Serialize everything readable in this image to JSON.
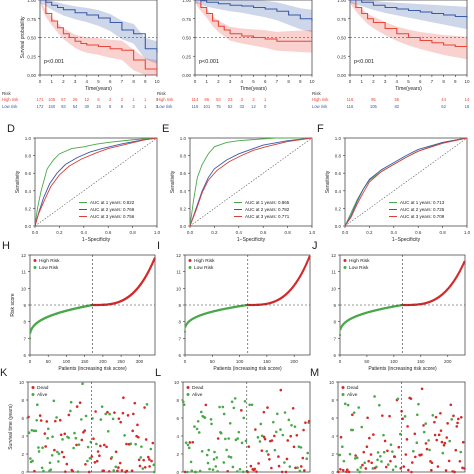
{
  "chart_data": [
    {
      "id": "A",
      "type": "line",
      "panel_label": "",
      "title": "",
      "xlabel": "Time(years)",
      "ylabel": "Survival probability",
      "xlim": [
        0,
        10
      ],
      "ylim": [
        0,
        1
      ],
      "x_ticks": [
        "0",
        "1",
        "2",
        "3",
        "4",
        "5",
        "6",
        "7",
        "8",
        "9",
        "10"
      ],
      "y_ticks": [
        "0.00",
        "0.25",
        "0.50",
        "0.75",
        "1.00"
      ],
      "pvalue": "p<0.001",
      "series": [
        {
          "name": "High risk",
          "color": "#e8473a",
          "x": [
            0,
            0.5,
            1,
            1.5,
            2,
            2.5,
            3,
            3.5,
            4,
            5,
            6,
            7,
            8,
            9,
            10
          ],
          "y": [
            1.0,
            0.82,
            0.72,
            0.63,
            0.55,
            0.5,
            0.45,
            0.42,
            0.4,
            0.38,
            0.35,
            0.33,
            0.2,
            0.08,
            0.05
          ]
        },
        {
          "name": "Low risk",
          "color": "#3a5ba8",
          "x": [
            0,
            0.5,
            1,
            1.5,
            2,
            3,
            4,
            5,
            6,
            7,
            8,
            9,
            10
          ],
          "y": [
            1.0,
            0.97,
            0.93,
            0.9,
            0.87,
            0.83,
            0.8,
            0.76,
            0.7,
            0.6,
            0.55,
            0.35,
            0.3
          ]
        }
      ],
      "risk_table": {
        "label": "Risk",
        "rows": [
          {
            "name": "High risk",
            "color": "#e8473a",
            "values": [
              "171",
              "105",
              "57",
              "26",
              "12",
              "6",
              "2",
              "2",
              "1",
              "1",
              "0"
            ]
          },
          {
            "name": "Low risk",
            "color": "#3a5ba8",
            "values": [
              "172",
              "150",
              "93",
              "54",
              "30",
              "15",
              "8",
              "6",
              "3",
              "1",
              "0"
            ]
          }
        ]
      }
    },
    {
      "id": "B",
      "type": "line",
      "panel_label": "",
      "title": "",
      "xlabel": "Time(years)",
      "ylabel": "",
      "xlim": [
        0,
        10
      ],
      "ylim": [
        0,
        1
      ],
      "x_ticks": [
        "0",
        "1",
        "2",
        "3",
        "4",
        "5",
        "6",
        "7",
        "8",
        "9",
        "10"
      ],
      "y_ticks": [
        "0.00",
        "0.25",
        "0.50",
        "0.75",
        "1.00"
      ],
      "pvalue": "p<0.001",
      "series": [
        {
          "name": "High risk",
          "color": "#e8473a",
          "x": [
            0,
            0.5,
            1,
            1.5,
            2,
            2.5,
            3,
            4,
            5,
            6,
            7,
            8,
            9,
            10
          ],
          "y": [
            1.0,
            0.9,
            0.82,
            0.72,
            0.65,
            0.6,
            0.55,
            0.52,
            0.5,
            0.48,
            0.45,
            0.45,
            0.45,
            0.45
          ]
        },
        {
          "name": "Low risk",
          "color": "#3a5ba8",
          "x": [
            0,
            0.5,
            1,
            2,
            3,
            4,
            5,
            6,
            7,
            8,
            9,
            10
          ],
          "y": [
            1.0,
            0.99,
            0.97,
            0.95,
            0.93,
            0.92,
            0.9,
            0.88,
            0.85,
            0.8,
            0.75,
            0.72
          ]
        }
      ],
      "risk_table": {
        "label": "Risk",
        "rows": [
          {
            "name": "High risk",
            "color": "#e8473a",
            "values": [
              "114",
              "86",
              "53",
              "23",
              "3",
              "2",
              "1",
              "",
              "",
              "",
              ""
            ]
          },
          {
            "name": "Low risk",
            "color": "#3a5ba8",
            "values": [
              "115",
              "101",
              "75",
              "52",
              "33",
              "12",
              "0",
              "",
              "",
              "",
              ""
            ]
          }
        ]
      }
    },
    {
      "id": "C",
      "type": "line",
      "panel_label": "",
      "title": "",
      "xlabel": "Time(years)",
      "ylabel": "",
      "xlim": [
        0,
        10
      ],
      "ylim": [
        0,
        1
      ],
      "x_ticks": [
        "0",
        "1",
        "2",
        "3",
        "4",
        "5",
        "6",
        "7",
        "8",
        "9",
        "10"
      ],
      "y_ticks": [
        "0.00",
        "0.25",
        "0.50",
        "0.75",
        "1.00"
      ],
      "pvalue": "p<0.001",
      "series": [
        {
          "name": "High risk",
          "color": "#e8473a",
          "x": [
            0,
            0.5,
            1,
            1.5,
            2,
            3,
            4,
            5,
            6,
            7,
            8,
            9,
            10
          ],
          "y": [
            1.0,
            0.9,
            0.82,
            0.75,
            0.7,
            0.62,
            0.55,
            0.5,
            0.46,
            0.43,
            0.4,
            0.38,
            0.36
          ]
        },
        {
          "name": "Low risk",
          "color": "#3a5ba8",
          "x": [
            0,
            1,
            2,
            3,
            4,
            5,
            6,
            7,
            8,
            9,
            10
          ],
          "y": [
            1.0,
            0.97,
            0.93,
            0.9,
            0.88,
            0.86,
            0.84,
            0.82,
            0.8,
            0.78,
            0.76
          ]
        }
      ],
      "risk_table": {
        "label": "Risk",
        "rows": [
          {
            "name": "High risk",
            "color": "#e8473a",
            "values": [
              "116",
              "",
              "95",
              "",
              "55",
              "",
              "",
              "",
              "44",
              "",
              "14"
            ]
          },
          {
            "name": "Low risk",
            "color": "#3a5ba8",
            "values": [
              "116",
              "",
              "105",
              "",
              "82",
              "",
              "",
              "",
              "62",
              "",
              "18"
            ]
          }
        ]
      }
    },
    {
      "id": "D",
      "type": "line",
      "panel_label": "D",
      "title": "",
      "xlabel": "1−Specificity",
      "ylabel": "Sensitivity",
      "xlim": [
        0,
        1
      ],
      "ylim": [
        0,
        1
      ],
      "x_ticks": [
        "0.0",
        "0.2",
        "0.4",
        "0.6",
        "0.8",
        "1.0"
      ],
      "y_ticks": [
        "0.0",
        "0.2",
        "0.4",
        "0.6",
        "0.8",
        "1.0"
      ],
      "legend": [
        "AUC at 1 years: 0.822",
        "AUC at 2 years: 0.769",
        "AUC at 3 years: 0.756"
      ],
      "series": [
        {
          "name": "AUC at 1 years: 0.822",
          "color": "#4aa84a",
          "x": [
            0,
            0.02,
            0.05,
            0.08,
            0.1,
            0.15,
            0.2,
            0.3,
            0.4,
            0.5,
            0.6,
            0.8,
            1
          ],
          "y": [
            0,
            0.2,
            0.4,
            0.55,
            0.65,
            0.75,
            0.82,
            0.88,
            0.9,
            0.93,
            0.95,
            0.98,
            1
          ]
        },
        {
          "name": "AUC at 2 years: 0.769",
          "color": "#3a5ba8",
          "x": [
            0,
            0.03,
            0.07,
            0.12,
            0.18,
            0.25,
            0.35,
            0.45,
            0.55,
            0.7,
            0.85,
            1
          ],
          "y": [
            0,
            0.15,
            0.32,
            0.48,
            0.6,
            0.7,
            0.78,
            0.84,
            0.88,
            0.93,
            0.97,
            1
          ]
        },
        {
          "name": "AUC at 3 years: 0.756",
          "color": "#d9403a",
          "x": [
            0,
            0.03,
            0.08,
            0.13,
            0.2,
            0.28,
            0.38,
            0.5,
            0.6,
            0.75,
            0.9,
            1
          ],
          "y": [
            0,
            0.14,
            0.3,
            0.45,
            0.58,
            0.68,
            0.76,
            0.83,
            0.88,
            0.93,
            0.98,
            1
          ]
        }
      ]
    },
    {
      "id": "E",
      "type": "line",
      "panel_label": "E",
      "title": "",
      "xlabel": "1−Specificity",
      "ylabel": "Sensitivity",
      "xlim": [
        0,
        1
      ],
      "ylim": [
        0,
        1
      ],
      "x_ticks": [
        "0.0",
        "0.2",
        "0.4",
        "0.6",
        "0.8",
        "1.0"
      ],
      "y_ticks": [
        "0.0",
        "0.2",
        "0.4",
        "0.6",
        "0.8",
        "1.0"
      ],
      "legend": [
        "AUC at 1 years: 0.865",
        "AUC at 2 years: 0.782",
        "AUC at 3 years: 0.771"
      ],
      "series": [
        {
          "name": "AUC at 1 years: 0.865",
          "color": "#4aa84a",
          "x": [
            0,
            0.03,
            0.06,
            0.1,
            0.15,
            0.2,
            0.3,
            0.4,
            0.5,
            0.7,
            1
          ],
          "y": [
            0,
            0.3,
            0.55,
            0.7,
            0.82,
            0.9,
            0.95,
            0.97,
            0.98,
            1,
            1
          ]
        },
        {
          "name": "AUC at 2 years: 0.782",
          "color": "#3a5ba8",
          "x": [
            0,
            0.05,
            0.1,
            0.15,
            0.2,
            0.3,
            0.4,
            0.5,
            0.6,
            0.8,
            1
          ],
          "y": [
            0,
            0.2,
            0.4,
            0.55,
            0.65,
            0.75,
            0.82,
            0.87,
            0.92,
            0.97,
            1
          ]
        },
        {
          "name": "AUC at 3 years: 0.771",
          "color": "#d9403a",
          "x": [
            0,
            0.05,
            0.1,
            0.15,
            0.22,
            0.32,
            0.42,
            0.52,
            0.62,
            0.8,
            1
          ],
          "y": [
            0,
            0.18,
            0.38,
            0.52,
            0.63,
            0.73,
            0.8,
            0.86,
            0.9,
            0.96,
            1
          ]
        }
      ]
    },
    {
      "id": "F",
      "type": "line",
      "panel_label": "F",
      "title": "",
      "xlabel": "1−Specificity",
      "ylabel": "Sensitivity",
      "xlim": [
        0,
        1
      ],
      "ylim": [
        0,
        1
      ],
      "x_ticks": [
        "0.0",
        "0.2",
        "0.4",
        "0.6",
        "0.8",
        "1.0"
      ],
      "y_ticks": [
        "0.0",
        "0.2",
        "0.4",
        "0.6",
        "0.8",
        "1.0"
      ],
      "legend": [
        "AUC at 1 years: 0.713",
        "AUC at 2 years: 0.725",
        "AUC at 3 years: 0.709"
      ],
      "series": [
        {
          "name": "AUC at 1 years: 0.713",
          "color": "#4aa84a",
          "x": [
            0,
            0.05,
            0.1,
            0.15,
            0.2,
            0.3,
            0.4,
            0.5,
            0.6,
            0.8,
            1
          ],
          "y": [
            0,
            0.15,
            0.3,
            0.42,
            0.52,
            0.62,
            0.7,
            0.78,
            0.85,
            0.95,
            1
          ]
        },
        {
          "name": "AUC at 2 years: 0.725",
          "color": "#3a5ba8",
          "x": [
            0,
            0.05,
            0.1,
            0.15,
            0.2,
            0.3,
            0.4,
            0.5,
            0.6,
            0.8,
            1
          ],
          "y": [
            0,
            0.12,
            0.28,
            0.42,
            0.53,
            0.64,
            0.72,
            0.8,
            0.87,
            0.95,
            1
          ]
        },
        {
          "name": "AUC at 3 years: 0.709",
          "color": "#d9403a",
          "x": [
            0,
            0.05,
            0.1,
            0.15,
            0.2,
            0.3,
            0.4,
            0.5,
            0.6,
            0.8,
            1
          ],
          "y": [
            0,
            0.1,
            0.25,
            0.38,
            0.5,
            0.62,
            0.7,
            0.78,
            0.85,
            0.94,
            1
          ]
        }
      ]
    },
    {
      "id": "H",
      "type": "scatter",
      "panel_label": "H",
      "title": "",
      "xlabel": "Patients (increasing risk score)",
      "ylabel": "Risk score",
      "xlim": [
        0,
        343
      ],
      "ylim": [
        6,
        12
      ],
      "cutoff_x": 171,
      "cutoff_y": 9,
      "x_ticks": [
        "0",
        "50",
        "100",
        "150",
        "200",
        "250",
        "300",
        "350"
      ],
      "x_tick_values": [
        0,
        50,
        100,
        150,
        200,
        250,
        300,
        350
      ],
      "y_ticks": [
        "6",
        "7",
        "8",
        "9",
        "10",
        "11",
        "12"
      ],
      "y_tick_values": [
        6,
        7,
        8,
        9,
        10,
        11,
        12
      ],
      "legend": [
        "High Risk",
        "Low Risk"
      ],
      "legend_colors": [
        "#d42a2a",
        "#4aa84a"
      ],
      "curve": {
        "n": 343,
        "min": 7.0,
        "mid": 9.0,
        "max": 11.8
      }
    },
    {
      "id": "I",
      "type": "scatter",
      "panel_label": "I",
      "title": "",
      "xlabel": "Patients (increasing risk score)",
      "ylabel": "",
      "xlim": [
        0,
        229
      ],
      "ylim": [
        6,
        12
      ],
      "cutoff_x": 115,
      "cutoff_y": 9,
      "x_ticks": [
        "0",
        "50",
        "100",
        "150",
        "200"
      ],
      "x_tick_values": [
        0,
        50,
        100,
        150,
        200
      ],
      "y_ticks": [
        "6",
        "7",
        "8",
        "9",
        "10",
        "11",
        "12"
      ],
      "y_tick_values": [
        6,
        7,
        8,
        9,
        10,
        11,
        12
      ],
      "legend": [
        "High Risk",
        "Low Risk"
      ],
      "legend_colors": [
        "#d42a2a",
        "#4aa84a"
      ],
      "curve": {
        "n": 229,
        "min": 7.4,
        "mid": 9.0,
        "max": 11.9
      }
    },
    {
      "id": "J",
      "type": "scatter",
      "panel_label": "J",
      "title": "",
      "xlabel": "Patients (increasing risk score)",
      "ylabel": "",
      "xlim": [
        0,
        232
      ],
      "ylim": [
        6,
        12
      ],
      "cutoff_x": 116,
      "cutoff_y": 9,
      "x_ticks": [
        "0",
        "50",
        "100",
        "150",
        "200"
      ],
      "x_tick_values": [
        0,
        50,
        100,
        150,
        200
      ],
      "y_ticks": [
        "6",
        "7",
        "8",
        "9",
        "10",
        "11",
        "12"
      ],
      "y_tick_values": [
        6,
        7,
        8,
        9,
        10,
        11,
        12
      ],
      "legend": [
        "High Risk",
        "Low Risk"
      ],
      "legend_colors": [
        "#d42a2a",
        "#4aa84a"
      ],
      "curve": {
        "n": 232,
        "min": 7.2,
        "mid": 9.0,
        "max": 11.6
      }
    },
    {
      "id": "K",
      "type": "scatter",
      "panel_label": "K",
      "title": "",
      "xlabel": "",
      "ylabel": "Survival time (years)",
      "xlim": [
        0,
        343
      ],
      "ylim": [
        0,
        10
      ],
      "cutoff_x": 171,
      "y_ticks": [
        "0",
        "2",
        "4",
        "6",
        "8",
        "10"
      ],
      "y_tick_values": [
        0,
        2,
        4,
        6,
        8,
        10
      ],
      "legend": [
        "Dead",
        "Alive"
      ],
      "legend_colors": [
        "#d42a2a",
        "#4aa84a"
      ],
      "points": {
        "n": 140,
        "dead_low": 0.25,
        "dead_high": 0.6,
        "seed": 11
      }
    },
    {
      "id": "L",
      "type": "scatter",
      "panel_label": "L",
      "title": "",
      "xlabel": "",
      "ylabel": "",
      "xlim": [
        0,
        229
      ],
      "ylim": [
        0,
        10
      ],
      "cutoff_x": 115,
      "y_ticks": [
        "0",
        "2",
        "4",
        "6",
        "8",
        "10"
      ],
      "y_tick_values": [
        0,
        2,
        4,
        6,
        8,
        10
      ],
      "legend": [
        "Dead",
        "Alive"
      ],
      "legend_colors": [
        "#d42a2a",
        "#4aa84a"
      ],
      "points": {
        "n": 130,
        "dead_low": 0.15,
        "dead_high": 0.5,
        "seed": 29
      }
    },
    {
      "id": "M",
      "type": "scatter",
      "panel_label": "M",
      "title": "",
      "xlabel": "",
      "ylabel": "",
      "xlim": [
        0,
        232
      ],
      "ylim": [
        0,
        10
      ],
      "cutoff_x": 116,
      "y_ticks": [
        "0",
        "2",
        "4",
        "6",
        "8",
        "10"
      ],
      "y_tick_values": [
        0,
        2,
        4,
        6,
        8,
        10
      ],
      "legend": [
        "Dead",
        "Alive"
      ],
      "legend_colors": [
        "#d42a2a",
        "#4aa84a"
      ],
      "points": {
        "n": 130,
        "dead_low": 0.35,
        "dead_high": 0.75,
        "seed": 53
      }
    }
  ]
}
